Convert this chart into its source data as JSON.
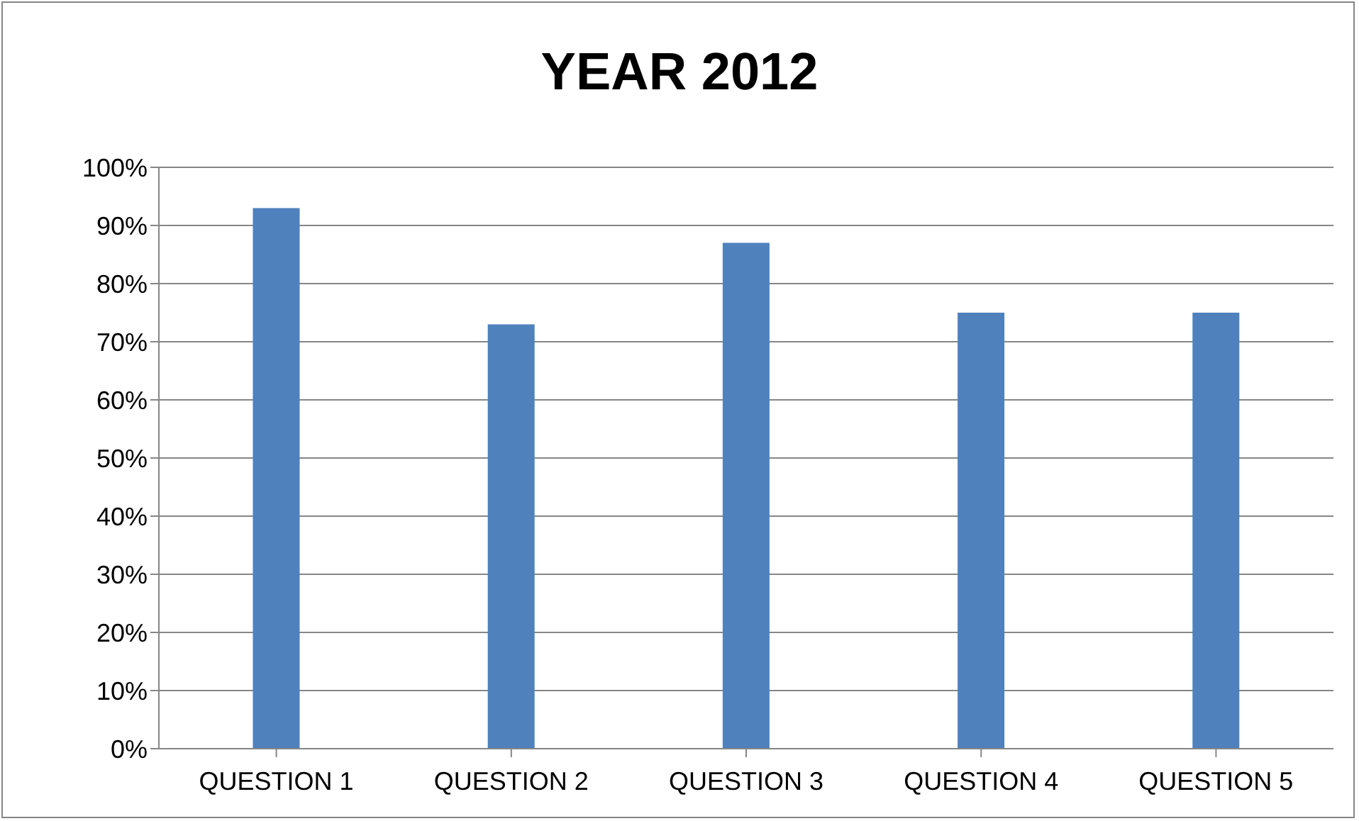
{
  "chart_data": {
    "type": "bar",
    "title": "YEAR 2012",
    "categories": [
      "QUESTION 1",
      "QUESTION 2",
      "QUESTION 3",
      "QUESTION 4",
      "QUESTION 5"
    ],
    "values": [
      93,
      73,
      87,
      75,
      75
    ],
    "color": "#4f81bd",
    "ylim": [
      0,
      100
    ],
    "yticks": [
      {
        "value": 0,
        "label": "0%"
      },
      {
        "value": 10,
        "label": "10%"
      },
      {
        "value": 20,
        "label": "20%"
      },
      {
        "value": 30,
        "label": "30%"
      },
      {
        "value": 40,
        "label": "40%"
      },
      {
        "value": 50,
        "label": "50%"
      },
      {
        "value": 60,
        "label": "60%"
      },
      {
        "value": 70,
        "label": "70%"
      },
      {
        "value": 80,
        "label": "80%"
      },
      {
        "value": 90,
        "label": "90%"
      },
      {
        "value": 100,
        "label": "100%"
      }
    ],
    "grid": "y"
  }
}
